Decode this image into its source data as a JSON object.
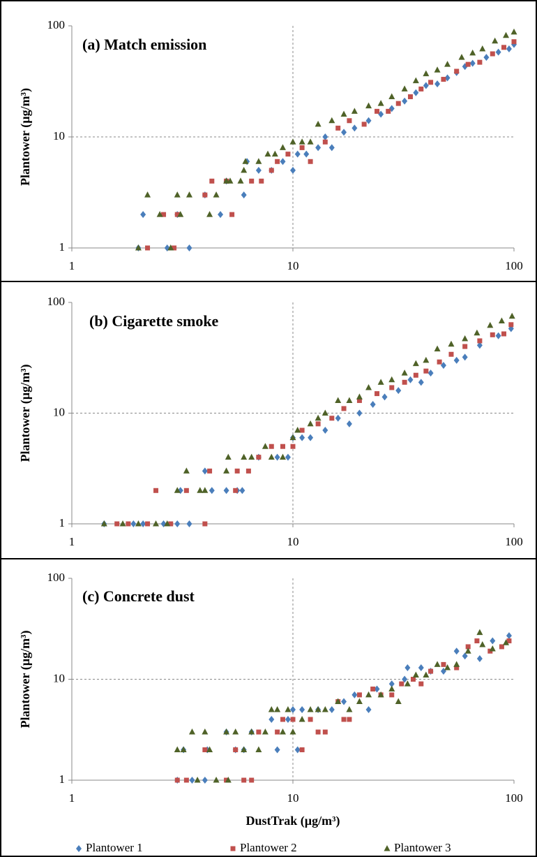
{
  "chart_data": [
    {
      "type": "scatter",
      "title": "(a) Match emission",
      "ylabel": "Plantower (µg/m³)",
      "xscale": "log",
      "yscale": "log",
      "xlim": [
        1,
        100
      ],
      "ylim": [
        1,
        100
      ],
      "xticks": [
        1,
        10,
        100
      ],
      "yticks": [
        1,
        10,
        100
      ],
      "grid": true,
      "series": [
        {
          "color": "#4a7ebb",
          "marker": "diamond",
          "x": [
            2.1,
            2.0,
            2.7,
            3.0,
            3.4,
            4.0,
            4.7,
            5.0,
            6.0,
            6.2,
            7.0,
            8.0,
            9.0,
            10.0,
            10.5,
            11.5,
            13,
            14,
            15,
            17,
            19,
            22,
            25,
            28,
            32,
            36,
            40,
            45,
            50,
            55,
            60,
            65,
            75,
            85,
            95,
            100
          ],
          "values": [
            2,
            1,
            1,
            2,
            1,
            3,
            2,
            4,
            3,
            6,
            5,
            5,
            6,
            5,
            7,
            7,
            8,
            10,
            8,
            11,
            12,
            14,
            16,
            18,
            21,
            25,
            29,
            30,
            34,
            38,
            43,
            46,
            52,
            58,
            62,
            68
          ]
        },
        {
          "color": "#c0504d",
          "marker": "square",
          "x": [
            2.2,
            2.6,
            2.9,
            3.0,
            4.0,
            4.3,
            5.3,
            5.0,
            6.5,
            7.2,
            8.0,
            8.5,
            9.5,
            11,
            12,
            14,
            16,
            18,
            21,
            24,
            27,
            30,
            34,
            38,
            42,
            48,
            55,
            62,
            70,
            80,
            90,
            100
          ],
          "values": [
            1,
            2,
            1,
            2,
            3,
            4,
            2,
            4,
            4,
            4,
            5,
            6,
            7,
            8,
            6,
            9,
            12,
            14,
            13,
            17,
            17,
            20,
            23,
            27,
            31,
            33,
            39,
            45,
            47,
            56,
            64,
            72
          ]
        },
        {
          "color": "#4f6228",
          "marker": "triangle",
          "x": [
            2.0,
            2.2,
            2.5,
            2.8,
            3.0,
            3.1,
            3.4,
            4.2,
            4.5,
            5.0,
            5.2,
            5.8,
            6.0,
            6.1,
            7.0,
            7.7,
            8.3,
            9.0,
            10,
            11,
            12,
            13,
            15,
            17,
            19,
            22,
            25,
            28,
            32,
            36,
            40,
            45,
            50,
            58,
            65,
            72,
            82,
            92,
            100
          ],
          "values": [
            1,
            3,
            2,
            1,
            3,
            2,
            3,
            2,
            3,
            4,
            4,
            4,
            5,
            6,
            6,
            7,
            7,
            8,
            9,
            9,
            9,
            13,
            14,
            16,
            17,
            19,
            20,
            23,
            27,
            32,
            37,
            40,
            45,
            52,
            57,
            62,
            73,
            82,
            88
          ]
        }
      ]
    },
    {
      "type": "scatter",
      "title": "(b) Cigarette smoke",
      "ylabel": "Plantower (µg/m³)",
      "xscale": "log",
      "yscale": "log",
      "xlim": [
        1,
        100
      ],
      "ylim": [
        1,
        100
      ],
      "xticks": [
        1,
        10,
        100
      ],
      "yticks": [
        1,
        10,
        100
      ],
      "grid": true,
      "series": [
        {
          "color": "#4a7ebb",
          "marker": "diamond",
          "x": [
            1.4,
            1.9,
            2.1,
            2.6,
            3.0,
            3.4,
            3.1,
            4.0,
            4.3,
            5.0,
            5.6,
            5.9,
            7.0,
            8.5,
            9.5,
            10,
            11,
            12,
            14,
            16,
            18,
            20,
            23,
            26,
            30,
            34,
            38,
            42,
            48,
            55,
            60,
            70,
            85,
            97
          ],
          "values": [
            1,
            1,
            1,
            1,
            1,
            1,
            2,
            3,
            2,
            2,
            2,
            2,
            4,
            4,
            4,
            6,
            6,
            6,
            7,
            9,
            8,
            10,
            12,
            14,
            16,
            20,
            19,
            23,
            27,
            30,
            32,
            41,
            50,
            58
          ]
        },
        {
          "color": "#c0504d",
          "marker": "square",
          "x": [
            1.6,
            1.8,
            2.2,
            2.4,
            2.8,
            3.3,
            4.0,
            4.2,
            5.5,
            5.6,
            6.3,
            7.0,
            8.0,
            9.0,
            10,
            11,
            13,
            15,
            17,
            20,
            24,
            28,
            32,
            36,
            40,
            46,
            52,
            60,
            70,
            80,
            90,
            97
          ],
          "values": [
            1,
            1,
            1,
            2,
            1,
            2,
            1,
            3,
            2,
            3,
            3,
            4,
            5,
            5,
            5,
            7,
            8,
            9,
            11,
            13,
            15,
            17,
            19,
            22,
            24,
            29,
            34,
            40,
            45,
            51,
            52,
            63
          ]
        },
        {
          "color": "#4f6228",
          "marker": "triangle",
          "x": [
            1.4,
            1.7,
            2.0,
            2.4,
            2.7,
            3.0,
            3.3,
            3.8,
            4.0,
            5.0,
            5.1,
            6.0,
            6.5,
            7.5,
            8.0,
            9.0,
            10,
            10.5,
            12,
            13,
            14,
            16,
            18,
            20,
            22,
            25,
            28,
            32,
            36,
            40,
            45,
            52,
            60,
            68,
            78,
            88,
            98
          ],
          "values": [
            1,
            1,
            1,
            1,
            1,
            2,
            3,
            2,
            2,
            3,
            4,
            4,
            4,
            5,
            4,
            4,
            6,
            7,
            8,
            9,
            10,
            13,
            13,
            14,
            17,
            19,
            20,
            23,
            28,
            30,
            38,
            42,
            47,
            53,
            62,
            68,
            75
          ]
        }
      ]
    },
    {
      "type": "scatter",
      "title": "(c) Concrete dust",
      "ylabel": "Plantower (µg/m³)",
      "xlabel": "DustTrak (µg/m³)",
      "xscale": "log",
      "yscale": "log",
      "xlim": [
        1,
        100
      ],
      "ylim": [
        1,
        100
      ],
      "xticks": [
        1,
        10,
        100
      ],
      "yticks": [
        1,
        10,
        100
      ],
      "grid": true,
      "legend": "bottom",
      "series": [
        {
          "name": "Plantower 1",
          "color": "#4a7ebb",
          "marker": "diamond",
          "x": [
            3.0,
            3.5,
            4.0,
            3.2,
            4.1,
            5.0,
            5.5,
            6.0,
            6.5,
            8.0,
            8.5,
            9.5,
            10,
            10.5,
            11,
            13,
            15,
            17,
            19,
            22,
            24,
            28,
            32,
            33,
            38,
            42,
            48,
            55,
            60,
            70,
            80,
            95
          ],
          "values": [
            1,
            1,
            1,
            2,
            2,
            3,
            2,
            2,
            3,
            4,
            2,
            4,
            5,
            2,
            5,
            5,
            5,
            6,
            7,
            5,
            8,
            9,
            10,
            13,
            13,
            12,
            12,
            19,
            17,
            16,
            24,
            27
          ]
        },
        {
          "name": "Plantower 2",
          "color": "#c0504d",
          "marker": "square",
          "x": [
            3.0,
            3.3,
            4.0,
            5.0,
            5.5,
            6.0,
            6.5,
            7.0,
            8.5,
            9.0,
            10,
            11,
            12,
            13,
            14,
            16,
            17,
            18,
            20,
            23,
            25,
            28,
            31,
            35,
            38,
            42,
            48,
            55,
            62,
            68,
            78,
            88,
            95
          ],
          "values": [
            1,
            1,
            2,
            1,
            2,
            1,
            1,
            3,
            3,
            4,
            4,
            2,
            4,
            3,
            3,
            6,
            4,
            4,
            7,
            8,
            7,
            7,
            9,
            10,
            9,
            12,
            14,
            13,
            21,
            24,
            19,
            21,
            24
          ]
        },
        {
          "name": "Plantower 3",
          "color": "#4f6228",
          "marker": "triangle",
          "x": [
            3.0,
            3.2,
            3.5,
            3.7,
            4.0,
            4.2,
            4.5,
            5.0,
            5.1,
            5.5,
            6.0,
            6.5,
            7.0,
            7.5,
            8.0,
            8.5,
            9.0,
            9.5,
            10,
            11,
            12,
            13,
            14,
            16,
            18,
            20,
            22,
            25,
            28,
            30,
            33,
            36,
            40,
            45,
            50,
            55,
            62,
            70,
            72,
            80,
            92
          ],
          "values": [
            2,
            2,
            3,
            1,
            3,
            2,
            1,
            3,
            1,
            3,
            2,
            3,
            2,
            3,
            5,
            5,
            3,
            5,
            3,
            4,
            5,
            5,
            5,
            6,
            5,
            6,
            7,
            7,
            8,
            6,
            9,
            11,
            11,
            14,
            13,
            14,
            19,
            29,
            22,
            20,
            23
          ]
        }
      ]
    }
  ]
}
